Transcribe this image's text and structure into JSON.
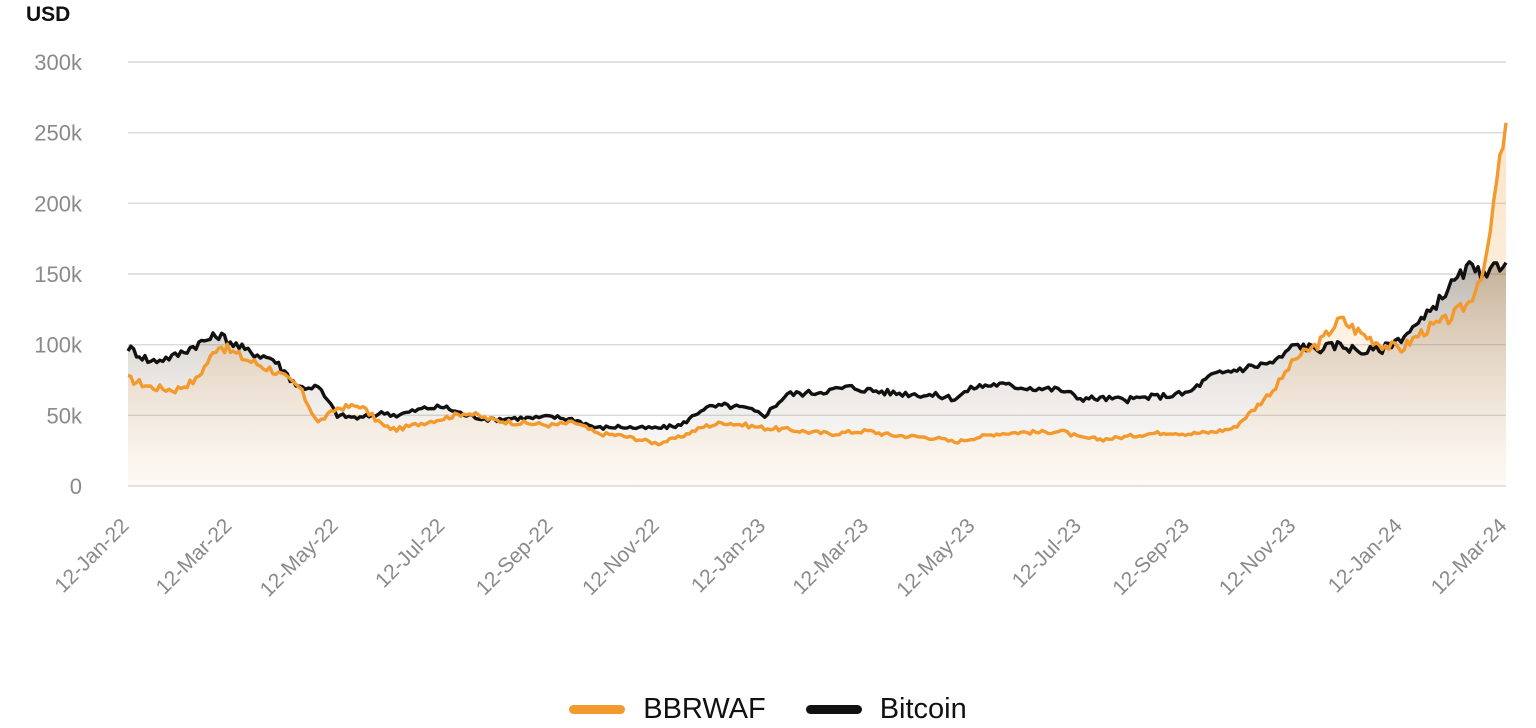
{
  "chart_data": {
    "type": "line",
    "title": "",
    "ylabel": "USD",
    "xlabel": "",
    "ylim": [
      0,
      300000
    ],
    "y_ticks": [
      "0",
      "50k",
      "100k",
      "150k",
      "200k",
      "250k",
      "300k"
    ],
    "y_tick_values": [
      0,
      50000,
      100000,
      150000,
      200000,
      250000,
      300000
    ],
    "x_tick_labels": [
      "12-Jan-22",
      "12-Mar-22",
      "12-May-22",
      "12-Jul-22",
      "12-Sep-22",
      "12-Nov-22",
      "12-Jan-23",
      "12-Mar-23",
      "12-May-23",
      "12-Jul-23",
      "12-Sep-23",
      "12-Nov-23",
      "12-Jan-24",
      "12-Mar-24"
    ],
    "grid": true,
    "legend_position": "bottom",
    "series": [
      {
        "name": "BBRWAF",
        "color": "#f29a2e",
        "x": [
          "2022-01-12",
          "2022-01-25",
          "2022-02-08",
          "2022-02-20",
          "2022-03-05",
          "2022-03-20",
          "2022-04-05",
          "2022-04-20",
          "2022-05-01",
          "2022-05-12",
          "2022-05-25",
          "2022-06-08",
          "2022-06-15",
          "2022-07-01",
          "2022-07-12",
          "2022-07-25",
          "2022-08-08",
          "2022-08-20",
          "2022-09-01",
          "2022-09-12",
          "2022-09-25",
          "2022-10-08",
          "2022-10-20",
          "2022-11-01",
          "2022-11-12",
          "2022-11-25",
          "2022-12-08",
          "2022-12-20",
          "2023-01-01",
          "2023-01-12",
          "2023-01-25",
          "2023-02-08",
          "2023-02-20",
          "2023-03-01",
          "2023-03-12",
          "2023-03-25",
          "2023-04-08",
          "2023-04-20",
          "2023-05-01",
          "2023-05-12",
          "2023-05-25",
          "2023-06-08",
          "2023-06-20",
          "2023-07-01",
          "2023-07-12",
          "2023-07-25",
          "2023-08-08",
          "2023-08-20",
          "2023-09-01",
          "2023-09-12",
          "2023-09-25",
          "2023-10-08",
          "2023-10-20",
          "2023-11-01",
          "2023-11-12",
          "2023-11-25",
          "2023-12-08",
          "2023-12-20",
          "2024-01-01",
          "2024-01-12",
          "2024-01-25",
          "2024-02-08",
          "2024-02-20",
          "2024-03-01",
          "2024-03-05",
          "2024-03-12"
        ],
        "y": [
          76000,
          70000,
          68000,
          75000,
          100000,
          90000,
          82000,
          70000,
          45000,
          55000,
          57000,
          42000,
          40000,
          45000,
          48000,
          52000,
          47000,
          45000,
          44000,
          43000,
          45000,
          37000,
          36000,
          33000,
          30000,
          35000,
          42000,
          45000,
          43000,
          41000,
          40000,
          38000,
          37000,
          38000,
          39000,
          36000,
          35000,
          34000,
          31000,
          34000,
          37000,
          38000,
          38000,
          39000,
          34000,
          33000,
          35000,
          37000,
          38000,
          37000,
          38000,
          41000,
          55000,
          70000,
          90000,
          100000,
          118000,
          108000,
          100000,
          97000,
          110000,
          118000,
          130000,
          160000,
          200000,
          257000
        ]
      },
      {
        "name": "Bitcoin",
        "color": "#111111",
        "x": [
          "2022-01-12",
          "2022-01-25",
          "2022-02-08",
          "2022-02-20",
          "2022-03-05",
          "2022-03-20",
          "2022-04-05",
          "2022-04-20",
          "2022-05-01",
          "2022-05-12",
          "2022-05-25",
          "2022-06-08",
          "2022-06-15",
          "2022-07-01",
          "2022-07-12",
          "2022-07-25",
          "2022-08-08",
          "2022-08-20",
          "2022-09-01",
          "2022-09-12",
          "2022-09-25",
          "2022-10-08",
          "2022-10-20",
          "2022-11-01",
          "2022-11-12",
          "2022-11-25",
          "2022-12-08",
          "2022-12-20",
          "2023-01-01",
          "2023-01-12",
          "2023-01-25",
          "2023-02-08",
          "2023-02-20",
          "2023-03-01",
          "2023-03-12",
          "2023-03-25",
          "2023-04-08",
          "2023-04-20",
          "2023-05-01",
          "2023-05-12",
          "2023-05-25",
          "2023-06-08",
          "2023-06-20",
          "2023-07-01",
          "2023-07-12",
          "2023-07-25",
          "2023-08-08",
          "2023-08-20",
          "2023-09-01",
          "2023-09-12",
          "2023-09-25",
          "2023-10-08",
          "2023-10-20",
          "2023-11-01",
          "2023-11-12",
          "2023-11-25",
          "2023-12-08",
          "2023-12-20",
          "2024-01-01",
          "2024-01-12",
          "2024-01-25",
          "2024-02-08",
          "2024-02-20",
          "2024-03-01",
          "2024-03-05",
          "2024-03-12"
        ],
        "y": [
          98000,
          88000,
          92000,
          100000,
          107000,
          96000,
          90000,
          70000,
          70000,
          50000,
          48000,
          52000,
          50000,
          55000,
          56000,
          50000,
          47000,
          48000,
          48000,
          49000,
          47000,
          41000,
          42000,
          41000,
          41000,
          43000,
          55000,
          57000,
          55000,
          50000,
          65000,
          66000,
          68000,
          70000,
          68000,
          66000,
          65000,
          64000,
          62000,
          70000,
          72000,
          70000,
          69000,
          68000,
          62000,
          62000,
          61000,
          63000,
          64000,
          66000,
          78000,
          82000,
          85000,
          88000,
          100000,
          97000,
          100000,
          95000,
          97000,
          105000,
          118000,
          140000,
          155000,
          145000,
          155000,
          158000
        ]
      }
    ]
  }
}
